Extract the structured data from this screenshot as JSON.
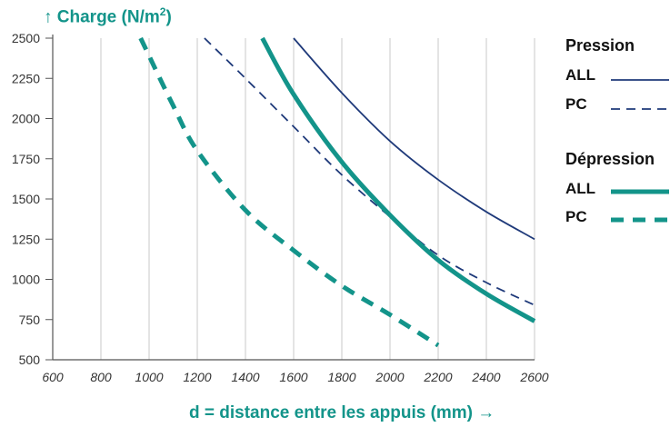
{
  "chart_data": {
    "type": "line",
    "title": "",
    "ylabel_arrow": "↑",
    "ylabel": "Charge (N/m",
    "ylabel_sup": "2",
    "ylabel_close": ")",
    "xlabel": "d = distance entre les appuis (mm)",
    "xlabel_arrow": "→",
    "xlim": [
      600,
      2600
    ],
    "ylim": [
      500,
      2500
    ],
    "x_ticks": [
      "600",
      "800",
      "1000",
      "1200",
      "1400",
      "1600",
      "1800",
      "2000",
      "2200",
      "2400",
      "2600"
    ],
    "y_ticks": [
      "500",
      "750",
      "1000",
      "1250",
      "1500",
      "1750",
      "2000",
      "2250",
      "2500"
    ],
    "grid": "vertical",
    "legend_position": "right",
    "legend": {
      "groups": [
        {
          "title": "Pression",
          "entries": [
            {
              "label": "ALL"
            },
            {
              "label": "PC"
            }
          ]
        },
        {
          "title": "Dépression",
          "entries": [
            {
              "label": "ALL"
            },
            {
              "label": "PC"
            }
          ]
        }
      ]
    },
    "series": [
      {
        "group": "Pression",
        "name": "ALL",
        "color": "#1f3a7a",
        "style": "solid-thin",
        "points": [
          [
            1600,
            2500
          ],
          [
            1800,
            2160
          ],
          [
            2000,
            1860
          ],
          [
            2200,
            1620
          ],
          [
            2400,
            1420
          ],
          [
            2600,
            1250
          ]
        ]
      },
      {
        "group": "Pression",
        "name": "PC",
        "color": "#1f3a7a",
        "style": "dashed-thin",
        "points": [
          [
            1230,
            2500
          ],
          [
            1400,
            2250
          ],
          [
            1600,
            1950
          ],
          [
            1800,
            1650
          ],
          [
            2000,
            1390
          ],
          [
            2200,
            1150
          ],
          [
            2400,
            980
          ],
          [
            2600,
            840
          ]
        ]
      },
      {
        "group": "Dépression",
        "name": "ALL",
        "color": "#13948a",
        "style": "solid-thick",
        "points": [
          [
            1470,
            2500
          ],
          [
            1600,
            2150
          ],
          [
            1800,
            1730
          ],
          [
            2000,
            1400
          ],
          [
            2200,
            1120
          ],
          [
            2400,
            910
          ],
          [
            2600,
            740
          ]
        ]
      },
      {
        "group": "Dépression",
        "name": "PC",
        "color": "#13948a",
        "style": "dashed-thick",
        "points": [
          [
            965,
            2500
          ],
          [
            1100,
            2080
          ],
          [
            1200,
            1800
          ],
          [
            1400,
            1430
          ],
          [
            1600,
            1180
          ],
          [
            1800,
            960
          ],
          [
            2000,
            780
          ],
          [
            2200,
            590
          ]
        ]
      }
    ]
  }
}
